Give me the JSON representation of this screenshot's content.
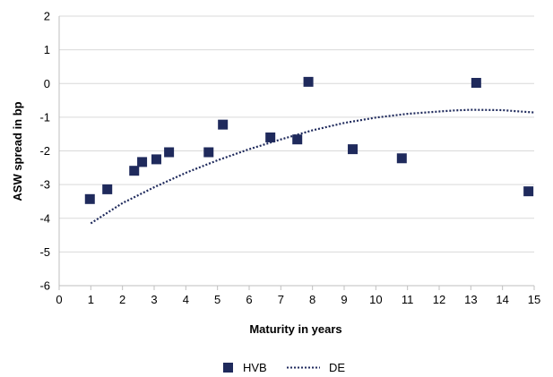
{
  "chart_data": {
    "type": "scatter",
    "title": "",
    "xlabel": "Maturity in years",
    "ylabel": "ASW spread in bp",
    "xlim": [
      0,
      15
    ],
    "ylim": [
      -6,
      2
    ],
    "x_ticks": [
      "0",
      "1",
      "2",
      "3",
      "4",
      "5",
      "6",
      "7",
      "8",
      "9",
      "10",
      "11",
      "12",
      "13",
      "14",
      "15"
    ],
    "y_ticks": [
      "2",
      "1",
      "0",
      "-1",
      "-2",
      "-3",
      "-4",
      "-5",
      "-6"
    ],
    "grid": "horizontal",
    "legend_position": "bottom",
    "series": [
      {
        "name": "HVB",
        "kind": "scatter",
        "marker": "square",
        "color": "#1F2A5C",
        "points": [
          {
            "x": 0.97,
            "y": -3.43
          },
          {
            "x": 1.52,
            "y": -3.14
          },
          {
            "x": 2.37,
            "y": -2.59
          },
          {
            "x": 2.62,
            "y": -2.33
          },
          {
            "x": 3.07,
            "y": -2.25
          },
          {
            "x": 3.47,
            "y": -2.04
          },
          {
            "x": 4.72,
            "y": -2.04
          },
          {
            "x": 5.17,
            "y": -1.22
          },
          {
            "x": 6.67,
            "y": -1.6
          },
          {
            "x": 7.52,
            "y": -1.66
          },
          {
            "x": 7.87,
            "y": 0.05
          },
          {
            "x": 9.27,
            "y": -1.95
          },
          {
            "x": 10.82,
            "y": -2.22
          },
          {
            "x": 13.17,
            "y": 0.02
          },
          {
            "x": 14.82,
            "y": -3.2
          }
        ]
      },
      {
        "name": "DE",
        "kind": "line",
        "style": "dotted",
        "color": "#1F2A5C",
        "points": [
          {
            "x": 1.0,
            "y": -4.15
          },
          {
            "x": 2.0,
            "y": -3.55
          },
          {
            "x": 3.0,
            "y": -3.08
          },
          {
            "x": 4.0,
            "y": -2.65
          },
          {
            "x": 5.0,
            "y": -2.28
          },
          {
            "x": 6.0,
            "y": -1.95
          },
          {
            "x": 7.0,
            "y": -1.66
          },
          {
            "x": 8.0,
            "y": -1.39
          },
          {
            "x": 9.0,
            "y": -1.17
          },
          {
            "x": 10.0,
            "y": -1.01
          },
          {
            "x": 11.0,
            "y": -0.9
          },
          {
            "x": 12.0,
            "y": -0.83
          },
          {
            "x": 12.5,
            "y": -0.8
          },
          {
            "x": 13.0,
            "y": -0.78
          },
          {
            "x": 14.0,
            "y": -0.79
          },
          {
            "x": 14.4,
            "y": -0.82
          },
          {
            "x": 15.0,
            "y": -0.86
          }
        ]
      }
    ]
  }
}
